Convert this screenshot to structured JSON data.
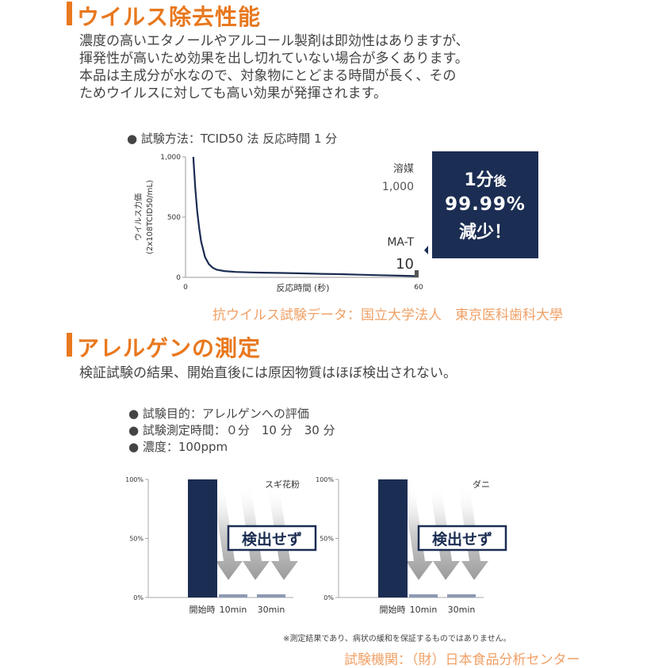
{
  "virus": {
    "title": "ウイルス除去性能",
    "paragraph": [
      "濃度の高いエタノールやアルコール製剤は即効性はありますが、",
      "揮発性が高いため効果を出し切れていない場合が多くあります。",
      "本品は主成分が水なので、対象物にとどまる時間が長く、その",
      "ためウイルスに対しても高い効果が発揮されます。"
    ],
    "method": "● 試験方法：TCID50 法 反応時間 1 分",
    "callout": {
      "line1": "1分",
      "line1_small": "後",
      "line2": "99.99%",
      "line3": "減少！"
    },
    "credit": "抗ウイルス試験データ：国立大学法人　東京医科歯科大學"
  },
  "allergen": {
    "title": "アレルゲンの測定",
    "lead": "検証試験の結果、開始直後には原因物質はほぼ検出されない。",
    "bullets": [
      "● 試験目的：アレルゲンへの評価",
      "● 試験測定時間：０分　10 分　30 分",
      "● 濃度：100ppm"
    ],
    "note": "※測定結果であり、病状の緩和を保証するものではありません。",
    "credit": "試験機関：（財）日本食品分析センター",
    "badge": "検出せず"
  },
  "colors": {
    "navy": "#1b2d52",
    "accent": "#e8781e",
    "credit": "#f0a066",
    "lowbar": "#8c99b3",
    "arrow": "#a3a3a3"
  },
  "chart_data": [
    {
      "type": "line",
      "xlabel": "反応時間 (秒)",
      "ylabel": "ウイルス力価",
      "ylabel2": "(2x108TCID50/mL)",
      "x_ticks": [
        "0",
        "60"
      ],
      "y_ticks": [
        "0",
        "500",
        "1,000"
      ],
      "xlim": [
        0,
        60
      ],
      "ylim": [
        0,
        1000
      ],
      "series": [
        {
          "x": [
            2,
            2.5,
            3,
            3.5,
            4,
            5,
            6,
            7,
            8,
            10,
            13,
            17,
            20,
            25,
            30,
            35,
            40,
            45,
            50,
            55,
            60
          ],
          "values": [
            1000,
            740,
            550,
            410,
            300,
            170,
            110,
            80,
            64,
            52,
            45,
            41,
            39,
            36,
            33,
            29,
            26,
            22,
            18,
            14,
            10
          ]
        }
      ],
      "annotations": [
        {
          "label": "溶媒",
          "value": "1,000"
        },
        {
          "label": "MA-T",
          "value": "10"
        }
      ]
    },
    {
      "type": "bar",
      "categories": [
        "開始時",
        "10min",
        "30min"
      ],
      "values": [
        100,
        0.5,
        0.5
      ],
      "panel_label": "スギ花粉",
      "ylim": [
        0,
        100
      ],
      "y_ticks": [
        "0%",
        "50%",
        "100%"
      ]
    },
    {
      "type": "bar",
      "categories": [
        "開始時",
        "10min",
        "30min"
      ],
      "values": [
        100,
        0.5,
        0.5
      ],
      "panel_label": "ダニ",
      "ylim": [
        0,
        100
      ],
      "y_ticks": [
        "0%",
        "50%",
        "100%"
      ]
    }
  ]
}
